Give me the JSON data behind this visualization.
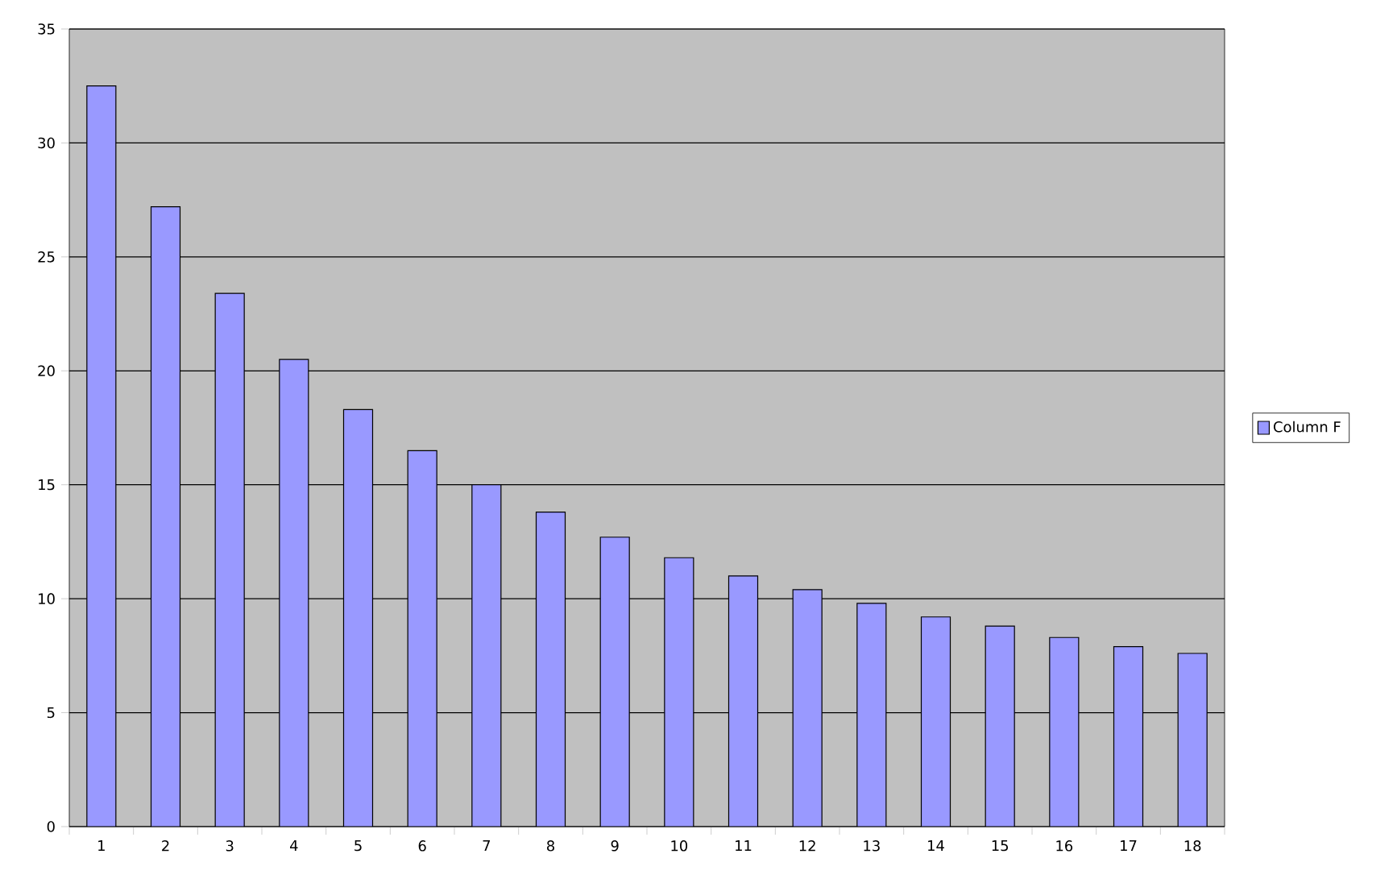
{
  "chart_data": {
    "type": "bar",
    "categories": [
      "1",
      "2",
      "3",
      "4",
      "5",
      "6",
      "7",
      "8",
      "9",
      "10",
      "11",
      "12",
      "13",
      "14",
      "15",
      "16",
      "17",
      "18"
    ],
    "series": [
      {
        "name": "Column F",
        "color": "#9999ff",
        "values": [
          32.5,
          27.2,
          23.4,
          20.5,
          18.3,
          16.5,
          15.0,
          13.8,
          12.7,
          11.8,
          11.0,
          10.4,
          9.8,
          9.2,
          8.8,
          8.3,
          7.9,
          7.6
        ]
      }
    ],
    "ylim": [
      0,
      35
    ],
    "yticks": [
      0,
      5,
      10,
      15,
      20,
      25,
      30,
      35
    ],
    "grid": "y",
    "legend": "right"
  }
}
